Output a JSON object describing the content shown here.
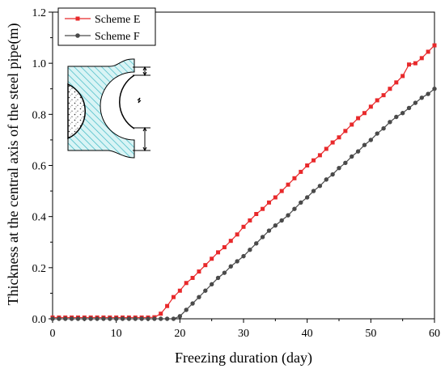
{
  "chart_data": {
    "type": "line",
    "title": "",
    "xlabel": "Freezing duration (day)",
    "ylabel": "Thickness at the central axis of the steel pipe(m)",
    "xlim": [
      0,
      60
    ],
    "ylim": [
      0,
      1.2
    ],
    "xticks": [
      "0",
      "10",
      "20",
      "30",
      "40",
      "50",
      "60"
    ],
    "yticks": [
      "0.0",
      "0.2",
      "0.4",
      "0.6",
      "0.8",
      "1.0",
      "1.2"
    ],
    "grid": false,
    "legend": "top-left",
    "series": [
      {
        "name": "Scheme E",
        "color": "#e8292b",
        "marker": "square",
        "x": [
          0,
          1,
          2,
          3,
          4,
          5,
          6,
          7,
          8,
          9,
          10,
          11,
          12,
          13,
          14,
          15,
          16,
          17,
          18,
          19,
          20,
          21,
          22,
          23,
          24,
          25,
          26,
          27,
          28,
          29,
          30,
          31,
          32,
          33,
          34,
          35,
          36,
          37,
          38,
          39,
          40,
          41,
          42,
          43,
          44,
          45,
          46,
          47,
          48,
          49,
          50,
          51,
          52,
          53,
          54,
          55,
          56,
          57,
          58,
          59,
          60
        ],
        "values": [
          0.005,
          0.005,
          0.005,
          0.005,
          0.005,
          0.005,
          0.005,
          0.005,
          0.005,
          0.005,
          0.005,
          0.005,
          0.005,
          0.005,
          0.005,
          0.005,
          0.006,
          0.02,
          0.05,
          0.085,
          0.11,
          0.14,
          0.16,
          0.185,
          0.21,
          0.235,
          0.26,
          0.28,
          0.305,
          0.33,
          0.36,
          0.385,
          0.41,
          0.43,
          0.455,
          0.475,
          0.5,
          0.525,
          0.55,
          0.575,
          0.6,
          0.62,
          0.64,
          0.665,
          0.69,
          0.71,
          0.735,
          0.76,
          0.785,
          0.805,
          0.83,
          0.855,
          0.875,
          0.9,
          0.925,
          0.95,
          0.995,
          1.0,
          1.02,
          1.045,
          1.07
        ]
      },
      {
        "name": "Scheme F",
        "color": "#4a4a4a",
        "marker": "circle",
        "x": [
          0,
          1,
          2,
          3,
          4,
          5,
          6,
          7,
          8,
          9,
          10,
          11,
          12,
          13,
          14,
          15,
          16,
          17,
          18,
          19,
          20,
          21,
          22,
          23,
          24,
          25,
          26,
          27,
          28,
          29,
          30,
          31,
          32,
          33,
          34,
          35,
          36,
          37,
          38,
          39,
          40,
          41,
          42,
          43,
          44,
          45,
          46,
          47,
          48,
          49,
          50,
          51,
          52,
          53,
          54,
          55,
          56,
          57,
          58,
          59,
          60
        ],
        "values": [
          0.0,
          0.0,
          0.0,
          0.0,
          0.0,
          0.0,
          0.0,
          0.0,
          0.0,
          0.0,
          0.0,
          0.0,
          0.0,
          0.0,
          0.0,
          0.0,
          0.0,
          0.0,
          0.0,
          0.0,
          0.01,
          0.035,
          0.06,
          0.085,
          0.11,
          0.135,
          0.16,
          0.18,
          0.205,
          0.225,
          0.245,
          0.27,
          0.295,
          0.32,
          0.345,
          0.365,
          0.385,
          0.405,
          0.43,
          0.455,
          0.475,
          0.5,
          0.52,
          0.545,
          0.565,
          0.59,
          0.61,
          0.635,
          0.655,
          0.68,
          0.7,
          0.725,
          0.745,
          0.77,
          0.79,
          0.805,
          0.825,
          0.845,
          0.865,
          0.88,
          0.9
        ]
      }
    ]
  }
}
